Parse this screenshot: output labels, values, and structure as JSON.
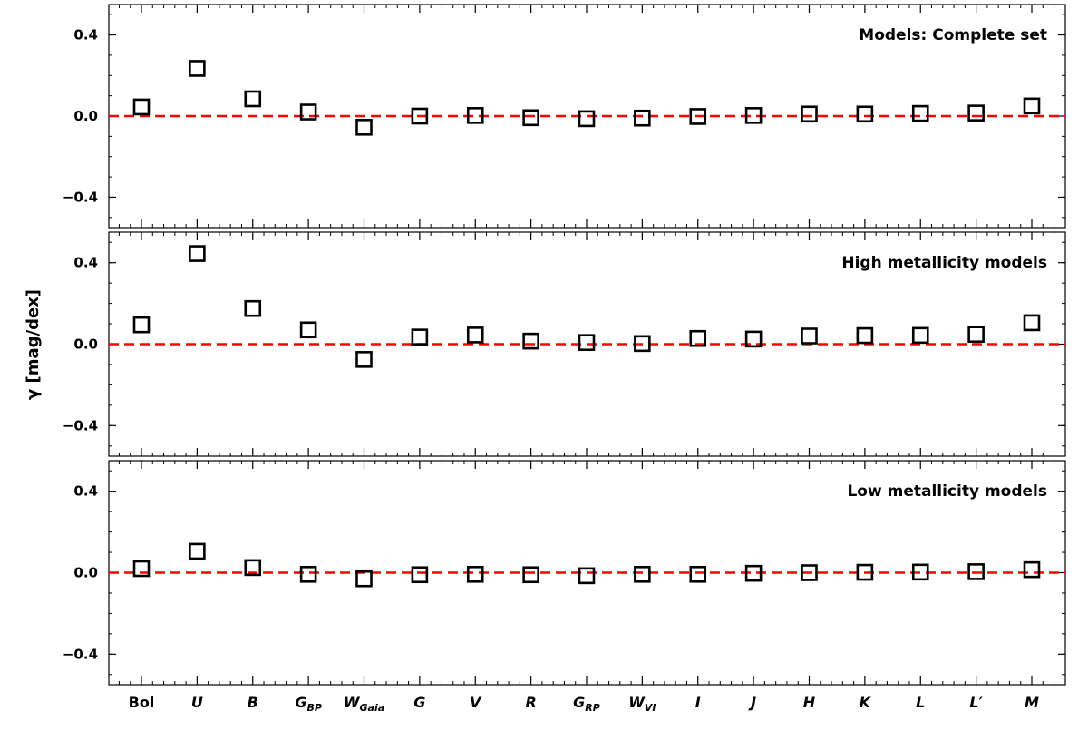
{
  "chart_data": {
    "type": "scatter",
    "ylabel": "γ [mag/dex]",
    "ylim": [
      -0.55,
      0.55
    ],
    "yticks": [
      0.4,
      0.0,
      -0.4
    ],
    "ytick_labels": [
      "0.4",
      "0.0",
      "−0.4"
    ],
    "reference_line": {
      "y": 0.0,
      "style": "dashed",
      "color": "#ff0000"
    },
    "marker": {
      "shape": "open-square",
      "color": "#000000"
    },
    "categories": [
      {
        "main": "Bol",
        "sub": "",
        "italic": false
      },
      {
        "main": "U",
        "sub": "",
        "italic": true
      },
      {
        "main": "B",
        "sub": "",
        "italic": true
      },
      {
        "main": "G",
        "sub": "BP",
        "italic": true
      },
      {
        "main": "W",
        "sub": "Gaia",
        "italic": true
      },
      {
        "main": "G",
        "sub": "",
        "italic": true
      },
      {
        "main": "V",
        "sub": "",
        "italic": true
      },
      {
        "main": "R",
        "sub": "",
        "italic": true
      },
      {
        "main": "G",
        "sub": "RP",
        "italic": true
      },
      {
        "main": "W",
        "sub": "VI",
        "italic": true
      },
      {
        "main": "I",
        "sub": "",
        "italic": true
      },
      {
        "main": "J",
        "sub": "",
        "italic": true
      },
      {
        "main": "H",
        "sub": "",
        "italic": true
      },
      {
        "main": "K",
        "sub": "",
        "italic": true
      },
      {
        "main": "L",
        "sub": "",
        "italic": true
      },
      {
        "main": "L′",
        "sub": "",
        "italic": true
      },
      {
        "main": "M",
        "sub": "",
        "italic": true
      }
    ],
    "panels": [
      {
        "title": "Models: Complete set",
        "values": [
          0.045,
          0.235,
          0.085,
          0.02,
          -0.055,
          0.0,
          0.003,
          -0.008,
          -0.013,
          -0.01,
          -0.002,
          0.003,
          0.01,
          0.01,
          0.013,
          0.015,
          0.05
        ]
      },
      {
        "title": "High metallicity models",
        "values": [
          0.095,
          0.445,
          0.175,
          0.07,
          -0.075,
          0.035,
          0.045,
          0.015,
          0.008,
          0.003,
          0.028,
          0.025,
          0.04,
          0.042,
          0.043,
          0.048,
          0.105
        ]
      },
      {
        "title": "Low metallicity models",
        "values": [
          0.02,
          0.105,
          0.025,
          -0.008,
          -0.03,
          -0.01,
          -0.008,
          -0.01,
          -0.015,
          -0.008,
          -0.008,
          -0.003,
          0.0,
          0.002,
          0.003,
          0.005,
          0.015
        ]
      }
    ]
  }
}
